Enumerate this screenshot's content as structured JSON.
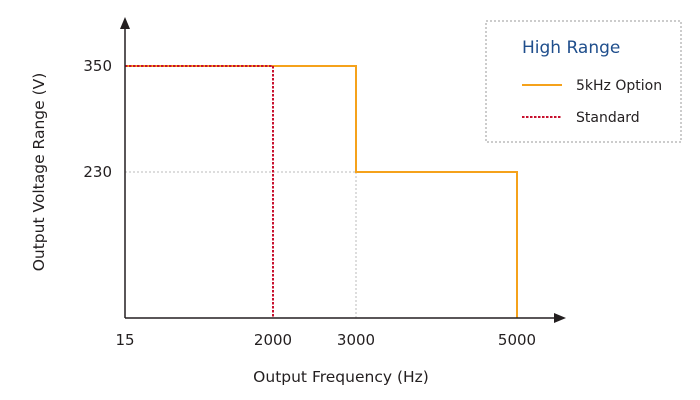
{
  "chart_data": {
    "type": "line",
    "title": "",
    "xlabel": "Output Frequency (Hz)",
    "ylabel": "Output Voltage Range (V)",
    "x_ticks": [
      15,
      2000,
      3000,
      5000
    ],
    "y_ticks": [
      230,
      350
    ],
    "x_tick_labels": [
      "15",
      "2000",
      "3000",
      "5000"
    ],
    "y_tick_labels": [
      "230",
      "350"
    ],
    "ylim": [
      0,
      350
    ],
    "grid": "dotted reference lines at 230 V and 3000 Hz",
    "legend": {
      "title": "High Range",
      "placement": "top-right",
      "entries": [
        "5kHz Option",
        "Standard"
      ]
    },
    "series": [
      {
        "name": "5kHz Option",
        "color": "#f5a21b",
        "style": "solid",
        "points": [
          [
            15,
            350
          ],
          [
            3000,
            350
          ],
          [
            3000,
            230
          ],
          [
            5000,
            230
          ],
          [
            5000,
            0
          ]
        ]
      },
      {
        "name": "Standard",
        "color": "#c8102e",
        "style": "dotted",
        "points": [
          [
            15,
            350
          ],
          [
            2000,
            350
          ],
          [
            2000,
            0
          ]
        ]
      }
    ]
  }
}
